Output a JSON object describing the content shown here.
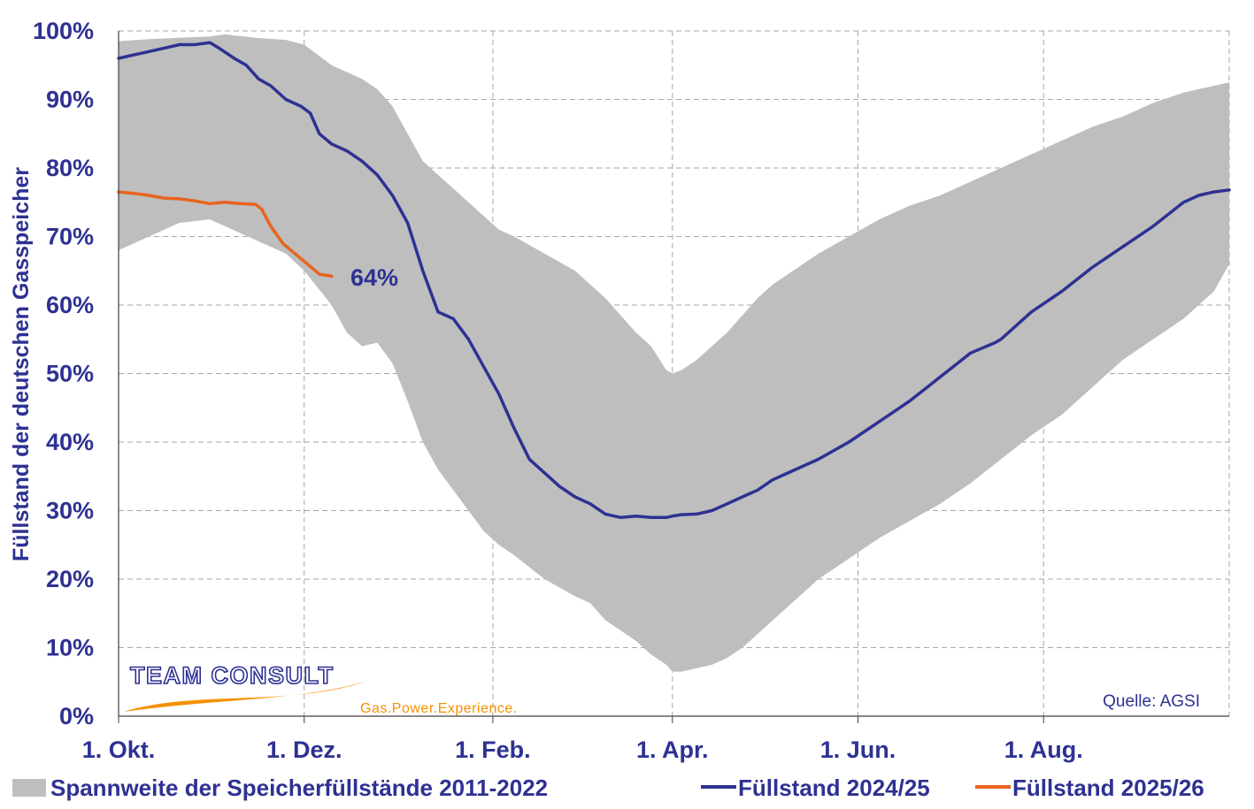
{
  "chart_data": {
    "type": "area",
    "ylabel": "Füllstand der deutschen Gasspeicher",
    "xlabel": "",
    "ylim": [
      0,
      100
    ],
    "y_ticks": [
      "0%",
      "10%",
      "20%",
      "30%",
      "40%",
      "50%",
      "60%",
      "70%",
      "80%",
      "90%",
      "100%"
    ],
    "x_ticks": [
      {
        "label": "1. Okt.",
        "day": 0
      },
      {
        "label": "1. Dez.",
        "day": 61
      },
      {
        "label": "1. Feb.",
        "day": 123
      },
      {
        "label": "1. Apr.",
        "day": 182
      },
      {
        "label": "1. Jun.",
        "day": 243
      },
      {
        "label": "1. Aug.",
        "day": 304
      }
    ],
    "x_axis_unit": "days since 1 October",
    "xlim": [
      0,
      365
    ],
    "grid": true,
    "legend_position": "bottom",
    "band": {
      "name": "Spannweite der Speicherfüllstände 2011-2022",
      "color": "#bebebe",
      "x": [
        0,
        10,
        20,
        30,
        35,
        45,
        55,
        61,
        70,
        75,
        80,
        85,
        90,
        95,
        100,
        105,
        110,
        115,
        120,
        125,
        130,
        140,
        150,
        155,
        160,
        165,
        170,
        175,
        180,
        182,
        185,
        190,
        195,
        200,
        205,
        210,
        215,
        220,
        225,
        230,
        240,
        250,
        260,
        270,
        280,
        290,
        300,
        310,
        320,
        330,
        340,
        350,
        360,
        365
      ],
      "upper": [
        98.5,
        98.8,
        99,
        99.2,
        99.5,
        99,
        98.7,
        98,
        95,
        94,
        93,
        91.5,
        89,
        85,
        81,
        79,
        77,
        75,
        73,
        71,
        70,
        67.5,
        65,
        63,
        61,
        58.5,
        56,
        54,
        50.5,
        50,
        50.5,
        52,
        54,
        56,
        58.5,
        61,
        63,
        64.5,
        66,
        67.5,
        70,
        72.5,
        74.5,
        76,
        78,
        80,
        82,
        84,
        86,
        87.5,
        89.5,
        91,
        92,
        92.5
      ],
      "lower": [
        68,
        70,
        72,
        72.5,
        71.5,
        69.5,
        67.5,
        65,
        60,
        56,
        54,
        54.5,
        51.5,
        46,
        40,
        36,
        33,
        30,
        27,
        25,
        23.5,
        20,
        17.5,
        16.5,
        14,
        12.5,
        11,
        9,
        7.5,
        6.5,
        6.5,
        7,
        7.5,
        8.5,
        10,
        12,
        14,
        16,
        18,
        20,
        23,
        26,
        28.5,
        31,
        34,
        37.5,
        41,
        44,
        48,
        52,
        55,
        58,
        62,
        66
      ]
    },
    "series": [
      {
        "name": "Füllstand 2024/25",
        "color": "#2e3192",
        "x": [
          0,
          5,
          10,
          15,
          20,
          25,
          30,
          33,
          38,
          42,
          46,
          50,
          55,
          60,
          63,
          66,
          70,
          75,
          80,
          85,
          90,
          95,
          100,
          105,
          110,
          115,
          120,
          125,
          130,
          135,
          140,
          145,
          150,
          155,
          160,
          165,
          170,
          175,
          180,
          182,
          185,
          190,
          195,
          200,
          205,
          210,
          215,
          220,
          230,
          240,
          250,
          260,
          270,
          280,
          288,
          290,
          300,
          310,
          320,
          330,
          340,
          350,
          355,
          360,
          365
        ],
        "y": [
          96,
          96.5,
          97,
          97.5,
          98,
          98,
          98.3,
          97.5,
          96,
          95,
          93,
          92,
          90,
          89,
          88,
          85,
          83.5,
          82.5,
          81,
          79,
          76,
          72,
          65,
          59,
          58,
          55,
          51,
          47,
          42,
          37.5,
          35.5,
          33.5,
          32,
          31,
          29.5,
          29,
          29.2,
          29,
          29,
          29.2,
          29.4,
          29.5,
          30,
          31,
          32,
          33,
          34.5,
          35.5,
          37.5,
          40,
          43,
          46,
          49.5,
          53,
          54.5,
          55,
          59,
          62,
          65.5,
          68.5,
          71.5,
          75,
          76,
          76.5,
          76.8
        ]
      },
      {
        "name": "Füllstand 2025/26",
        "color": "#e8641e",
        "x": [
          0,
          5,
          10,
          15,
          20,
          25,
          30,
          35,
          40,
          45,
          47,
          50,
          54,
          58,
          62,
          66,
          70
        ],
        "y": [
          76.5,
          76.3,
          76,
          75.6,
          75.5,
          75.2,
          74.8,
          75,
          74.8,
          74.7,
          74,
          71.5,
          69,
          67.5,
          66,
          64.5,
          64.2
        ]
      }
    ],
    "annotations": [
      {
        "text": "64%"
      }
    ],
    "source": "Quelle: AGSI"
  },
  "legend": {
    "band_label": "Spannweite der Speicherfüllstände 2011-2022",
    "series1_label": "Füllstand 2024/25",
    "series2_label": "Füllstand 2025/26"
  },
  "logo": {
    "name": "TEAM CONSULT",
    "tagline": "Gas.Power.Experience."
  }
}
